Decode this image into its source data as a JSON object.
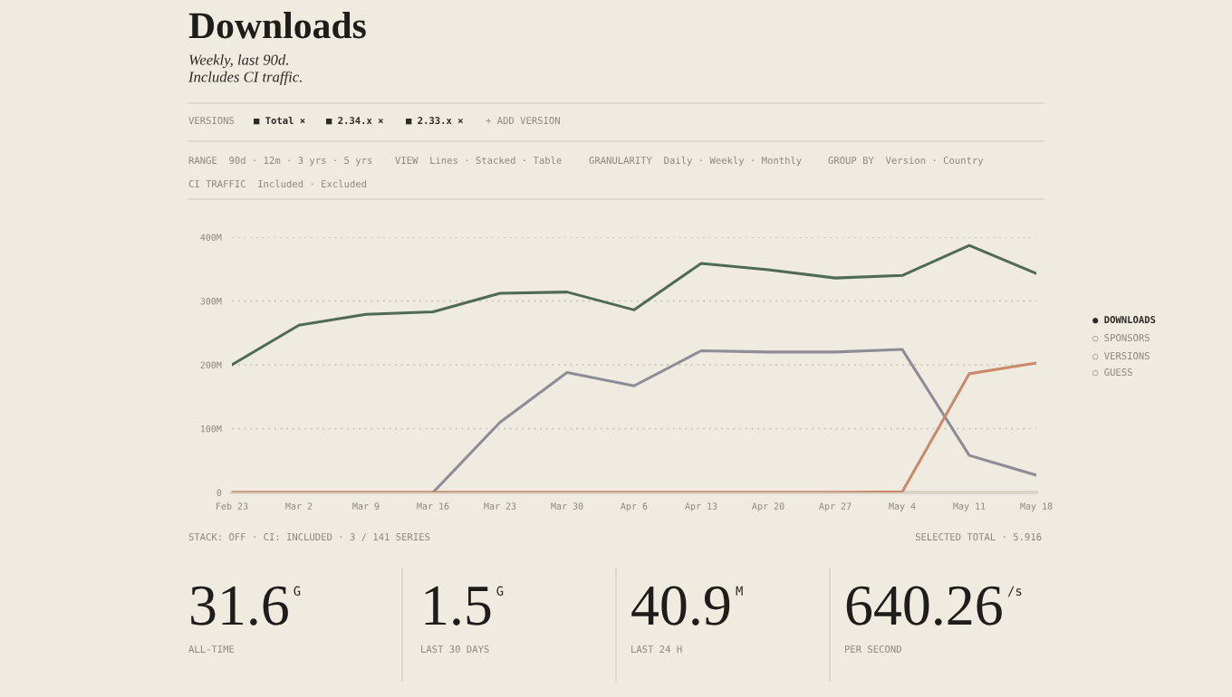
{
  "chart_data": {
    "type": "line",
    "title": "Downloads",
    "subtitle": "Weekly, last 90d.\nIncludes CI traffic.",
    "categories": [
      "Feb 23",
      "Mar 2",
      "Mar 9",
      "Mar 16",
      "Mar 23",
      "Mar 30",
      "Apr 6",
      "Apr 13",
      "Apr 20",
      "Apr 27",
      "May 4",
      "May 11",
      "May 18"
    ],
    "series": [
      {
        "color": "#4f6b55",
        "values": [
          200,
          262,
          279,
          283,
          312,
          314,
          286,
          359,
          349,
          336,
          340,
          387,
          343
        ]
      },
      {
        "color": "#8e8c97",
        "values": [
          null,
          null,
          null,
          0,
          110,
          188,
          167,
          222,
          220,
          220,
          224,
          58,
          27
        ]
      },
      {
        "color": "#c98a6a",
        "values": [
          0,
          0,
          0,
          0,
          0,
          0,
          0,
          0,
          0,
          0,
          1,
          186,
          203
        ]
      }
    ],
    "ylim": [
      0,
      400
    ],
    "yticks": [
      0,
      {
        "value": 100,
        "label": "100M"
      },
      {
        "value": 200,
        "label": "200M"
      },
      {
        "value": 300,
        "label": "300M"
      },
      {
        "value": 400,
        "label": "400M"
      }
    ],
    "grid": "y",
    "marker": "none",
    "line_style": "solid",
    "annotations": [
      "VERSIONS",
      "■ Total ×",
      "■ 2.34.x ×",
      "■ 2.33.x ×",
      "+ ADD VERSION",
      "RANGE  90d · 12m · 3 yrs · 5 yrs",
      "VIEW  Lines · Stacked · Table",
      "GRANULARITY  Daily · Weekly · Monthly",
      "GROUP BY  Version · Country",
      "CI TRAFFIC  Included · Excluded",
      "● DOWNLOADS",
      "○ SPONSORS",
      "○ VERSIONS",
      "○ GUESS",
      "STACK: OFF · CI: INCLUDED · 3 / 141 SERIES",
      "SELECTED TOTAL · 5.916",
      "31.6",
      "G",
      "ALL-TIME",
      "1.5",
      "G",
      "LAST 30 DAYS",
      "40.9",
      "M",
      "LAST 24 H",
      "640.26",
      "/s",
      "PER SECOND"
    ]
  }
}
